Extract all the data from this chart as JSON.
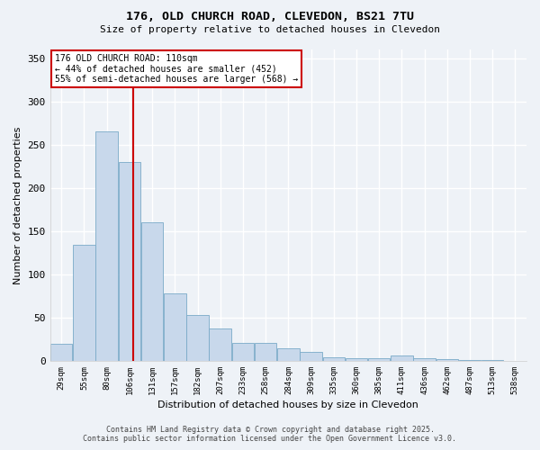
{
  "title": "176, OLD CHURCH ROAD, CLEVEDON, BS21 7TU",
  "subtitle": "Size of property relative to detached houses in Clevedon",
  "xlabel": "Distribution of detached houses by size in Clevedon",
  "ylabel": "Number of detached properties",
  "bar_color": "#c8d8eb",
  "bar_edge_color": "#7aaac8",
  "background_color": "#eef2f7",
  "grid_color": "#ffffff",
  "annotation_box_color": "#cc0000",
  "vline_color": "#cc0000",
  "vline_x": 110,
  "annotation_text": "176 OLD CHURCH ROAD: 110sqm\n← 44% of detached houses are smaller (452)\n55% of semi-detached houses are larger (568) →",
  "footer": "Contains HM Land Registry data © Crown copyright and database right 2025.\nContains public sector information licensed under the Open Government Licence v3.0.",
  "bin_labels": [
    "29sqm",
    "55sqm",
    "80sqm",
    "106sqm",
    "131sqm",
    "157sqm",
    "182sqm",
    "207sqm",
    "233sqm",
    "258sqm",
    "284sqm",
    "309sqm",
    "335sqm",
    "360sqm",
    "385sqm",
    "411sqm",
    "436sqm",
    "462sqm",
    "487sqm",
    "513sqm",
    "538sqm"
  ],
  "bin_edges": [
    29,
    55,
    80,
    106,
    131,
    157,
    182,
    207,
    233,
    258,
    284,
    309,
    335,
    360,
    385,
    411,
    436,
    462,
    487,
    513,
    538
  ],
  "bar_heights": [
    20,
    134,
    265,
    230,
    160,
    78,
    53,
    37,
    21,
    21,
    14,
    10,
    4,
    3,
    3,
    6,
    3,
    2,
    1,
    1,
    0
  ],
  "ylim": [
    0,
    360
  ],
  "yticks": [
    0,
    50,
    100,
    150,
    200,
    250,
    300,
    350
  ],
  "bin_width": 25.5
}
